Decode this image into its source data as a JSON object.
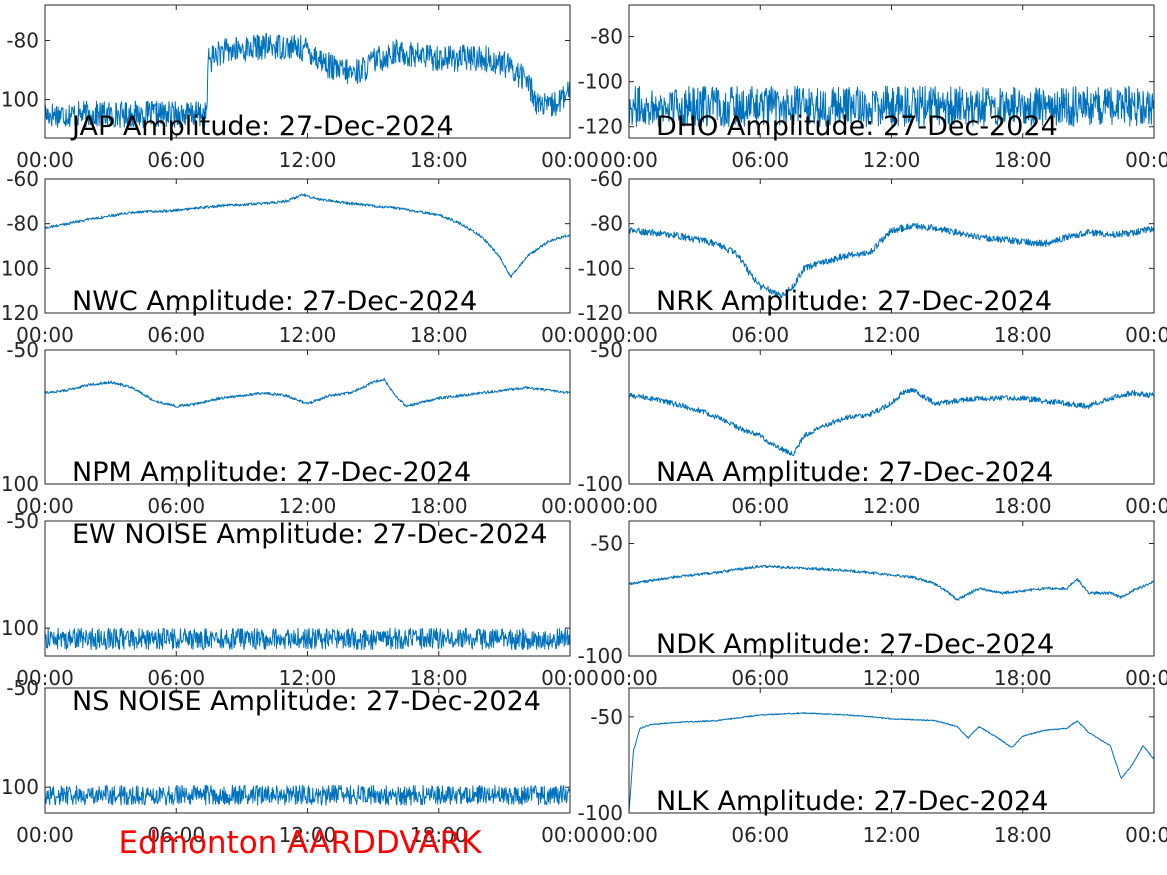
{
  "figure_title": "Edmonton AARDDVARK",
  "title_color": "#ff0000",
  "line_color": "#0072bd",
  "chart_data": [
    {
      "type": "line",
      "title": "JAP Amplitude: 27-Dec-2024",
      "xticks": [
        "00:00",
        "06:00",
        "12:00",
        "18:00",
        "00:00"
      ],
      "yticks": [
        -80,
        -100
      ],
      "ytick_labels": [
        "-80",
        "-100"
      ],
      "ylim": [
        -113,
        -68
      ],
      "series": [
        {
          "noise": 4.5,
          "x": [
            0,
            7.4,
            7.45,
            8,
            9,
            10,
            11,
            12,
            12.5,
            13.3,
            14,
            14.5,
            15,
            16,
            17,
            18,
            19,
            20,
            21,
            22,
            22.5,
            23,
            24
          ],
          "values": [
            -105,
            -105,
            -87,
            -84,
            -83,
            -82,
            -82,
            -83,
            -86,
            -90,
            -91,
            -90,
            -87,
            -84,
            -85,
            -86,
            -86,
            -86,
            -88,
            -93,
            -101,
            -103,
            -98
          ]
        }
      ]
    },
    {
      "type": "line",
      "title": "DHO Amplitude: 27-Dec-2024",
      "xticks": [
        "00:00",
        "06:00",
        "12:00",
        "18:00",
        "00:00"
      ],
      "yticks": [
        -80,
        -100,
        -120
      ],
      "ytick_labels": [
        "-80",
        "-100",
        "-120"
      ],
      "ylim": [
        -125,
        -66
      ],
      "series": [
        {
          "noise": 9,
          "x": [
            0,
            6,
            12,
            18,
            24
          ],
          "values": [
            -111,
            -111,
            -111,
            -111,
            -111
          ]
        }
      ]
    },
    {
      "type": "line",
      "title": "NWC Amplitude: 27-Dec-2024",
      "xticks": [
        "00:00",
        "06:00",
        "12:00",
        "18:00",
        "00:00"
      ],
      "yticks": [
        -60,
        -80,
        -100,
        -120
      ],
      "ytick_labels": [
        "-60",
        "-80",
        "-100",
        "-120"
      ],
      "ylim": [
        -120,
        -60
      ],
      "series": [
        {
          "noise": 0.6,
          "x": [
            0,
            2,
            4,
            6,
            8,
            10,
            11,
            11.8,
            12.5,
            14,
            16,
            18,
            19,
            20,
            20.8,
            21.3,
            22,
            23,
            24
          ],
          "values": [
            -82,
            -78,
            -75,
            -74,
            -72,
            -71,
            -70,
            -67,
            -69,
            -71,
            -73,
            -76,
            -80,
            -86,
            -95,
            -104,
            -95,
            -88,
            -85
          ]
        }
      ]
    },
    {
      "type": "line",
      "title": "NRK Amplitude: 27-Dec-2024",
      "xticks": [
        "00:00",
        "06:00",
        "12:00",
        "18:00",
        "00:00"
      ],
      "yticks": [
        -60,
        -80,
        -100,
        -120
      ],
      "ytick_labels": [
        "-60",
        "-80",
        "-100",
        "-120"
      ],
      "ylim": [
        -120,
        -60
      ],
      "series": [
        {
          "noise": 1.5,
          "x": [
            0,
            1,
            2,
            3,
            4,
            5,
            5.5,
            6,
            6.5,
            7,
            7.5,
            8,
            9,
            10,
            11,
            12,
            13,
            14,
            15,
            16,
            17,
            18,
            19,
            20,
            21,
            22,
            23,
            24
          ],
          "values": [
            -83,
            -84,
            -85,
            -87,
            -89,
            -94,
            -102,
            -108,
            -110,
            -112,
            -108,
            -100,
            -97,
            -94,
            -93,
            -83,
            -81,
            -82,
            -84,
            -86,
            -87,
            -88,
            -89,
            -86,
            -84,
            -85,
            -84,
            -82
          ]
        }
      ]
    },
    {
      "type": "line",
      "title": "NPM Amplitude: 27-Dec-2024",
      "xticks": [
        "00:00",
        "06:00",
        "12:00",
        "18:00",
        "00:00"
      ],
      "yticks": [
        -50,
        -100
      ],
      "ytick_labels": [
        "-50",
        "-100"
      ],
      "ylim": [
        -100,
        -50
      ],
      "series": [
        {
          "noise": 0.5,
          "x": [
            0,
            1,
            2,
            3,
            4,
            5,
            6,
            7,
            8,
            9,
            10,
            11,
            12,
            13,
            14,
            15,
            15.5,
            16,
            16.5,
            17,
            18,
            20,
            21,
            22,
            23,
            24
          ],
          "values": [
            -66,
            -65,
            -63,
            -62,
            -64,
            -69,
            -71,
            -70,
            -68,
            -67,
            -66,
            -67,
            -70,
            -67,
            -66,
            -62,
            -61,
            -67,
            -71,
            -70,
            -68,
            -66,
            -65,
            -64,
            -65,
            -66
          ]
        }
      ]
    },
    {
      "type": "line",
      "title": "NAA Amplitude: 27-Dec-2024",
      "xticks": [
        "00:00",
        "06:00",
        "12:00",
        "18:00",
        "00:00"
      ],
      "yticks": [
        -50,
        -100
      ],
      "ytick_labels": [
        "-50",
        "-100"
      ],
      "ylim": [
        -100,
        -50
      ],
      "series": [
        {
          "noise": 1.0,
          "x": [
            0,
            1,
            2,
            3,
            4,
            5,
            6,
            6.5,
            7,
            7.5,
            8,
            9,
            10,
            11,
            12,
            12.5,
            13,
            14,
            15,
            16,
            17,
            18,
            19,
            20,
            21,
            22,
            23,
            24
          ],
          "values": [
            -67,
            -68,
            -70,
            -72,
            -75,
            -79,
            -82,
            -85,
            -87,
            -89,
            -82,
            -78,
            -75,
            -74,
            -70,
            -66,
            -65,
            -70,
            -69,
            -68,
            -68,
            -68,
            -69,
            -70,
            -71,
            -68,
            -66,
            -67
          ]
        }
      ]
    },
    {
      "type": "line",
      "title": "EW NOISE Amplitude: 27-Dec-2024",
      "xticks": [
        "00:00",
        "06:00",
        "12:00",
        "18:00",
        "00:00"
      ],
      "yticks": [
        -50,
        -100
      ],
      "ytick_labels": [
        "-50",
        "-100"
      ],
      "ylim": [
        -113,
        -50
      ],
      "series": [
        {
          "noise": 5,
          "x": [
            0,
            6,
            12,
            18,
            24
          ],
          "values": [
            -105,
            -105,
            -105,
            -105,
            -105
          ]
        }
      ]
    },
    {
      "type": "line",
      "title": "NDK Amplitude: 27-Dec-2024",
      "xticks": [
        "00:00",
        "06:00",
        "12:00",
        "18:00",
        "00:00"
      ],
      "yticks": [
        -50,
        -100
      ],
      "ytick_labels": [
        "-50",
        "-100"
      ],
      "ylim": [
        -100,
        -40
      ],
      "series": [
        {
          "noise": 0.6,
          "x": [
            0,
            2,
            4,
            6,
            8,
            10,
            12,
            13,
            14,
            14.5,
            15,
            16,
            17,
            18,
            19,
            20,
            20.5,
            21,
            22,
            22.5,
            23,
            24
          ],
          "values": [
            -68,
            -65,
            -63,
            -60,
            -61,
            -62,
            -64,
            -65,
            -68,
            -71,
            -75,
            -70,
            -72,
            -71,
            -70,
            -70,
            -66,
            -72,
            -72,
            -74,
            -71,
            -67
          ]
        }
      ]
    },
    {
      "type": "line",
      "title": "NS NOISE Amplitude: 27-Dec-2024",
      "xticks": [
        "00:00",
        "06:00",
        "12:00",
        "18:00",
        "00:00"
      ],
      "yticks": [
        -50,
        -100
      ],
      "ytick_labels": [
        "-50",
        "-100"
      ],
      "ylim": [
        -113,
        -50
      ],
      "series": [
        {
          "noise": 5,
          "x": [
            0,
            6,
            12,
            18,
            24
          ],
          "values": [
            -104,
            -104,
            -104,
            -104,
            -104
          ]
        }
      ]
    },
    {
      "type": "line",
      "title": "NLK Amplitude: 27-Dec-2024",
      "xticks": [
        "00:00",
        "06:00",
        "12:00",
        "18:00",
        "00:00"
      ],
      "yticks": [
        -50,
        -100
      ],
      "ytick_labels": [
        "-50",
        "-100"
      ],
      "ylim": [
        -100,
        -35
      ],
      "series": [
        {
          "noise": 0.3,
          "x": [
            0,
            0.2,
            0.5,
            1,
            2,
            4,
            6,
            8,
            10,
            12,
            14,
            15,
            15.5,
            16,
            17,
            17.5,
            18,
            19,
            20,
            20.5,
            21,
            22,
            22.5,
            23,
            23.5,
            24
          ],
          "values": [
            -100,
            -68,
            -56,
            -54,
            -53,
            -52,
            -49,
            -48,
            -49,
            -51,
            -52,
            -55,
            -61,
            -55,
            -62,
            -66,
            -60,
            -57,
            -56,
            -52,
            -58,
            -65,
            -82,
            -75,
            -65,
            -72
          ]
        }
      ]
    }
  ]
}
